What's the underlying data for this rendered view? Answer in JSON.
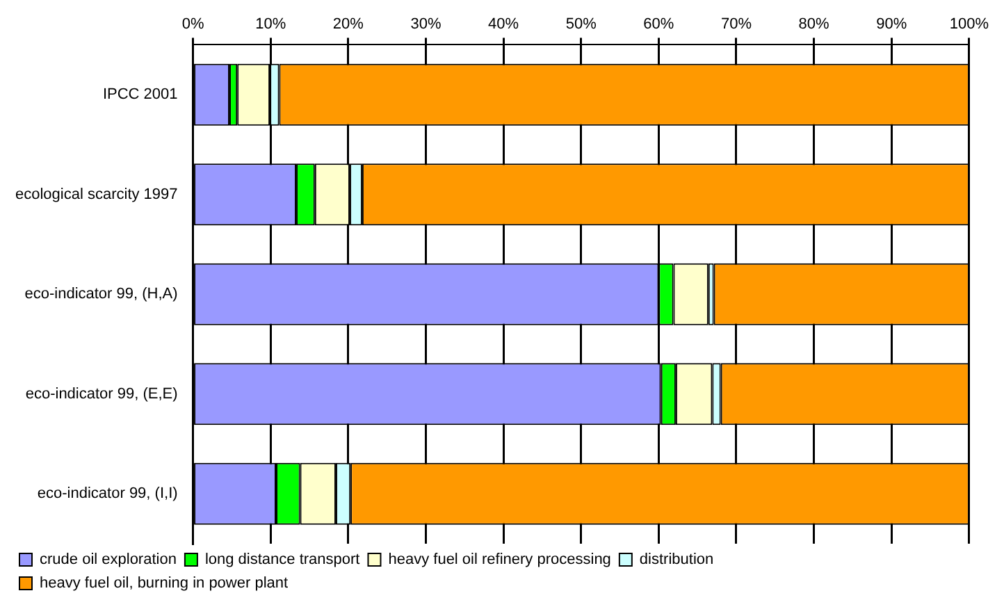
{
  "chart_data": {
    "type": "bar",
    "orientation": "horizontal",
    "stacked": true,
    "categories": [
      "IPCC 2001",
      "ecological scarcity 1997",
      "eco-indicator 99, (H,A)",
      "eco-indicator 99, (E,E)",
      "eco-indicator 99, (I,I)"
    ],
    "series": [
      {
        "name": "crude oil exploration",
        "color": "#9999ff",
        "values": [
          4.7,
          13.3,
          60.0,
          60.3,
          10.7
        ]
      },
      {
        "name": "long distance transport",
        "color": "#00ff00",
        "values": [
          1.0,
          2.4,
          1.9,
          1.9,
          3.1
        ]
      },
      {
        "name": "heavy fuel oil refinery processing",
        "color": "#ffffcc",
        "values": [
          4.2,
          4.5,
          4.5,
          4.7,
          4.6
        ]
      },
      {
        "name": "distribution",
        "color": "#ccffff",
        "values": [
          1.2,
          1.6,
          0.7,
          1.1,
          1.9
        ]
      },
      {
        "name": "heavy fuel oil, burning in power plant",
        "color": "#ff9900",
        "values": [
          88.9,
          78.2,
          32.9,
          32.0,
          79.7
        ]
      }
    ],
    "xlim": [
      0,
      100
    ],
    "xticks": [
      {
        "value": 0,
        "label": "0%"
      },
      {
        "value": 10,
        "label": "10%"
      },
      {
        "value": 20,
        "label": "20%"
      },
      {
        "value": 30,
        "label": "30%"
      },
      {
        "value": 40,
        "label": "40%"
      },
      {
        "value": 50,
        "label": "50%"
      },
      {
        "value": 60,
        "label": "60%"
      },
      {
        "value": 70,
        "label": "70%"
      },
      {
        "value": 80,
        "label": "80%"
      },
      {
        "value": 90,
        "label": "90%"
      },
      {
        "value": 100,
        "label": "100%"
      }
    ],
    "grid": "x",
    "legend": "bottom"
  }
}
